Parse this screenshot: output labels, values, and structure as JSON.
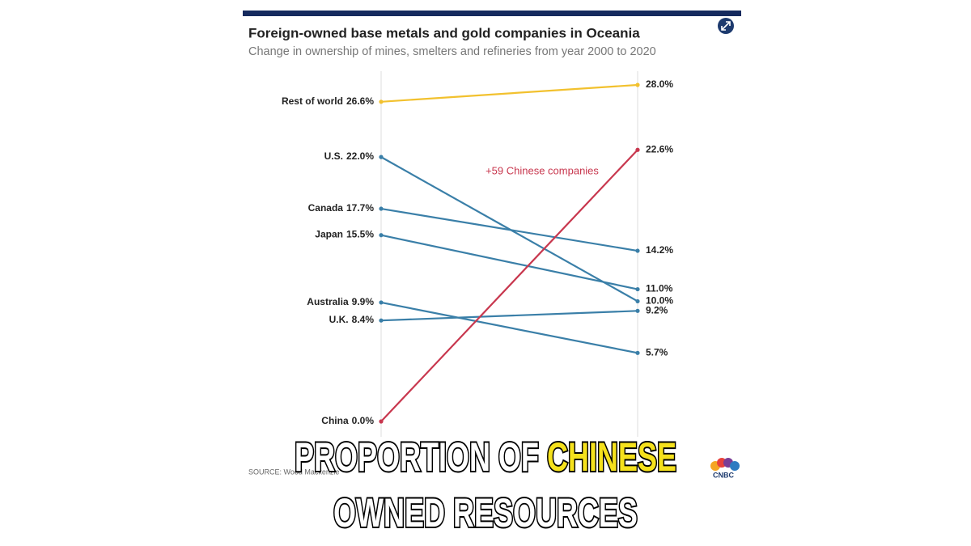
{
  "chart_data": {
    "type": "slope",
    "title": "Foreign-owned base metals and gold companies in Oceania",
    "subtitle": "Change in ownership of mines, smelters and refineries from year 2000 to 2020",
    "annotation": "+59 Chinese companies",
    "source": "SOURCE: Wood Mackenzie",
    "ylim": [
      0,
      28
    ],
    "series": [
      {
        "name": "Rest of world",
        "color": "#f2c12e",
        "values": [
          26.6,
          28.0
        ],
        "value_labels": [
          "26.6%",
          "28.0%"
        ]
      },
      {
        "name": "U.S.",
        "color": "#3a7fa8",
        "values": [
          22.0,
          10.0
        ],
        "value_labels": [
          "22.0%",
          "10.0%"
        ]
      },
      {
        "name": "Canada",
        "color": "#3a7fa8",
        "values": [
          17.7,
          14.2
        ],
        "value_labels": [
          "17.7%",
          "14.2%"
        ]
      },
      {
        "name": "Japan",
        "color": "#3a7fa8",
        "values": [
          15.5,
          11.0
        ],
        "value_labels": [
          "15.5%",
          "11.0%"
        ]
      },
      {
        "name": "Australia",
        "color": "#3a7fa8",
        "values": [
          9.9,
          5.7
        ],
        "value_labels": [
          "9.9%",
          "5.7%"
        ]
      },
      {
        "name": "U.K.",
        "color": "#3a7fa8",
        "values": [
          8.4,
          9.2
        ],
        "value_labels": [
          "8.4%",
          "9.2%"
        ]
      },
      {
        "name": "China",
        "color": "#c8374e",
        "values": [
          0.0,
          22.6
        ],
        "value_labels": [
          "0.0%",
          "22.6%"
        ]
      }
    ]
  },
  "caption": {
    "line1": [
      "PROPORTION OF",
      "CHINESE"
    ],
    "line2": "OWNED RESOURCES"
  },
  "logo": "CNBC"
}
